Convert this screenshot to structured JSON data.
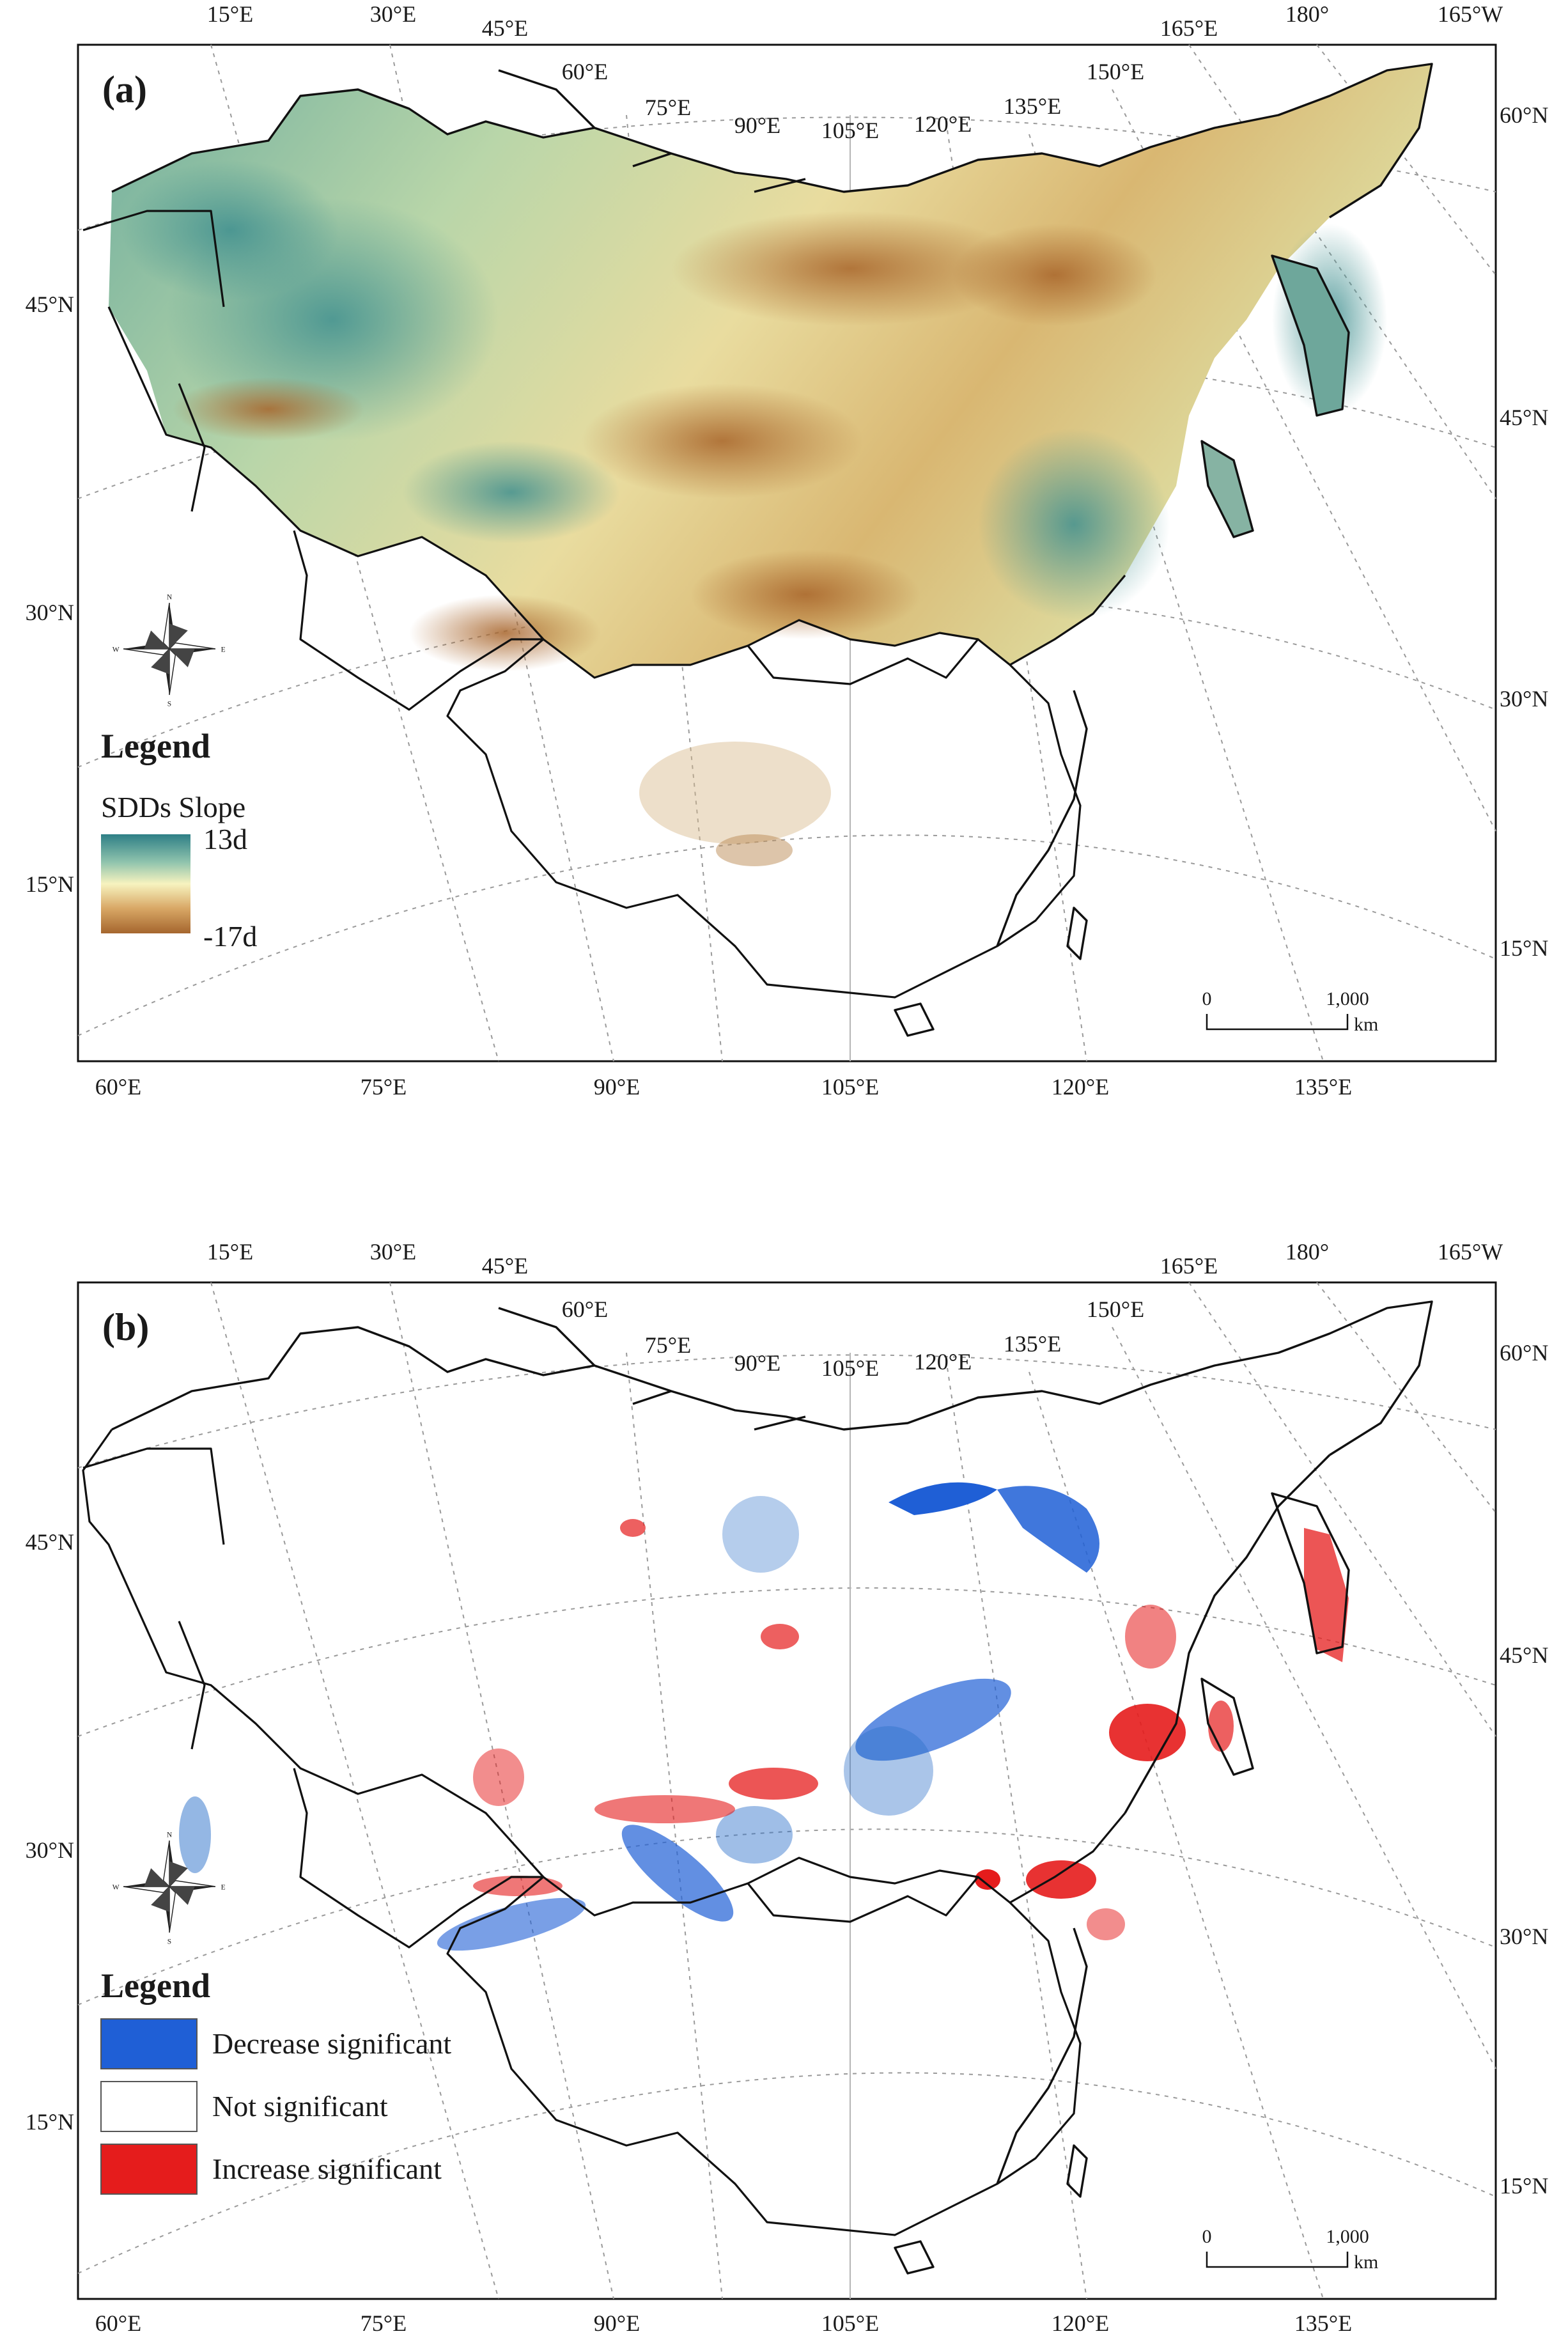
{
  "panel_a": {
    "tag": "(a)",
    "top_ticks": [
      "15°E",
      "30°E",
      "45°E",
      "60°E",
      "75°E",
      "90°E",
      "105°E",
      "120°E",
      "135°E",
      "150°E",
      "165°E",
      "180°",
      "165°W"
    ],
    "bottom_ticks": [
      "60°E",
      "75°E",
      "90°E",
      "105°E",
      "120°E",
      "135°E"
    ],
    "left_ticks": [
      "45°N",
      "30°N",
      "15°N"
    ],
    "right_ticks": [
      "60°N",
      "45°N",
      "30°N",
      "15°N"
    ],
    "legend": {
      "title": "Legend",
      "subtitle": "SDDs Slope",
      "max_label": "13d",
      "min_label": "-17d",
      "gradient_colors": [
        "#2e7f86",
        "#8fc3ad",
        "#f7f3bf",
        "#d8a765",
        "#a5662e"
      ]
    },
    "scale": {
      "zero": "0",
      "distance": "1,000",
      "unit": "km"
    }
  },
  "panel_b": {
    "tag": "(b)",
    "top_ticks": [
      "15°E",
      "30°E",
      "45°E",
      "60°E",
      "75°E",
      "90°E",
      "105°E",
      "120°E",
      "135°E",
      "150°E",
      "165°E",
      "180°",
      "165°W"
    ],
    "bottom_ticks": [
      "60°E",
      "75°E",
      "90°E",
      "105°E",
      "120°E",
      "135°E"
    ],
    "left_ticks": [
      "45°N",
      "30°N",
      "15°N"
    ],
    "right_ticks": [
      "60°N",
      "45°N",
      "30°N",
      "15°N"
    ],
    "legend": {
      "title": "Legend",
      "items": [
        {
          "label": "Decrease significant",
          "color": "#1f5fd6"
        },
        {
          "label": "Not significant",
          "color": "#ffffff"
        },
        {
          "label": "Increase significant",
          "color": "#e51c1c"
        }
      ]
    },
    "scale": {
      "zero": "0",
      "distance": "1,000",
      "unit": "km"
    }
  },
  "compass_icon": "north-arrow-compass-rose"
}
